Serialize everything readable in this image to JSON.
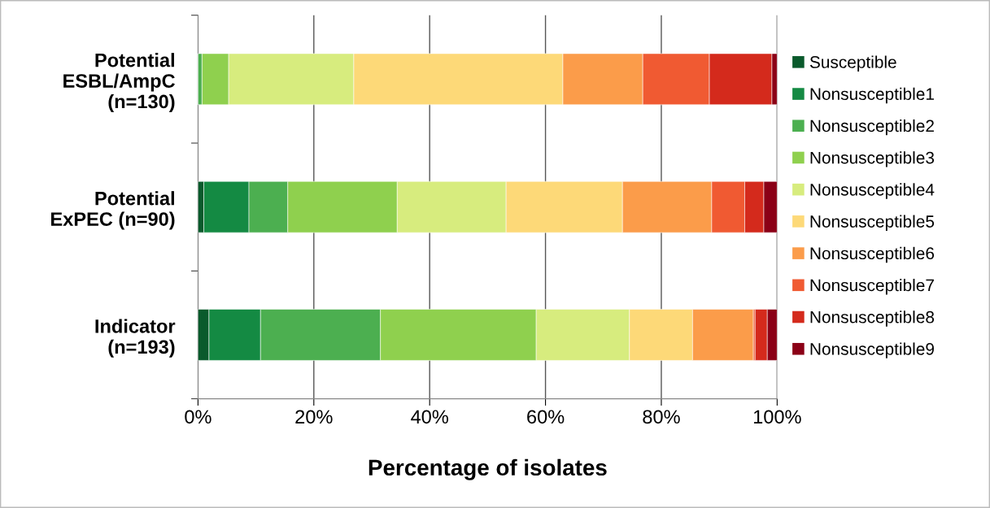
{
  "chart_data": {
    "type": "bar",
    "orientation": "horizontal",
    "stacked": true,
    "xlabel": "Percentage of isolates",
    "categories": [
      "Potential\nESBL/AmpC\n(n=130)",
      "Potential\nExPEC (n=90)",
      "Indicator\n(n=193)"
    ],
    "xlim": [
      0,
      100
    ],
    "xticks": [
      {
        "value": 0,
        "label": "0%"
      },
      {
        "value": 20,
        "label": "20%"
      },
      {
        "value": 40,
        "label": "40%"
      },
      {
        "value": 60,
        "label": "60%"
      },
      {
        "value": 80,
        "label": "80%"
      },
      {
        "value": 100,
        "label": "100%"
      }
    ],
    "grid": "x",
    "legend": "right",
    "series": [
      {
        "name": "Susceptible",
        "color": "#0a5a2c",
        "values": [
          0,
          1.0,
          1.9
        ]
      },
      {
        "name": "Nonsusceptible1",
        "color": "#148a43",
        "values": [
          0,
          7.8,
          8.9
        ]
      },
      {
        "name": "Nonsusceptible2",
        "color": "#4caf50",
        "values": [
          0.7,
          6.7,
          20.7
        ]
      },
      {
        "name": "Nonsusceptible3",
        "color": "#8fd04e",
        "values": [
          4.6,
          18.9,
          26.9
        ]
      },
      {
        "name": "Nonsusceptible4",
        "color": "#d7ec7e",
        "values": [
          21.6,
          18.8,
          16.1
        ]
      },
      {
        "name": "Nonsusceptible5",
        "color": "#fdd978",
        "values": [
          36.1,
          20.1,
          10.9
        ]
      },
      {
        "name": "Nonsusceptible6",
        "color": "#fb9c4a",
        "values": [
          13.8,
          15.4,
          10.5
        ]
      },
      {
        "name": "Nonsusceptible7",
        "color": "#f05a32",
        "values": [
          11.5,
          5.7,
          0.3
        ]
      },
      {
        "name": "Nonsusceptible8",
        "color": "#d42a1c",
        "values": [
          10.8,
          3.3,
          2.1
        ]
      },
      {
        "name": "Nonsusceptible9",
        "color": "#8b0016",
        "values": [
          0.9,
          2.3,
          1.7
        ]
      }
    ]
  }
}
